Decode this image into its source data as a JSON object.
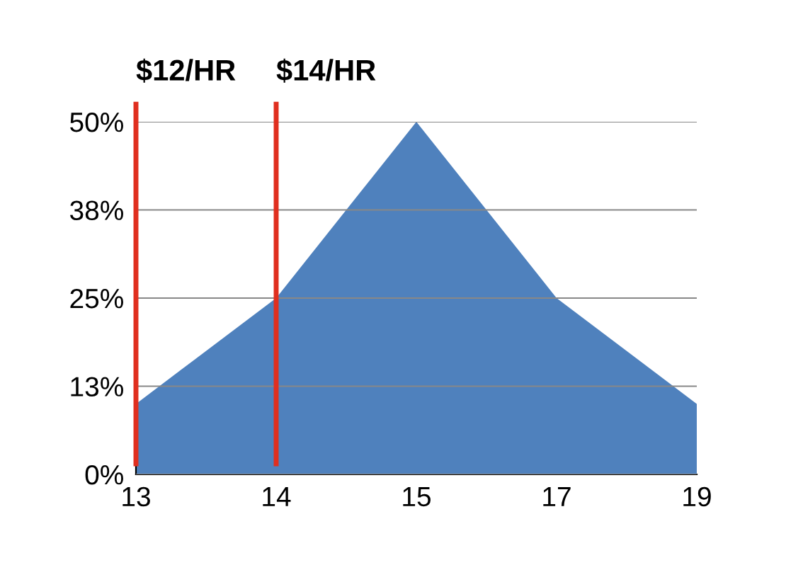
{
  "chart_data": {
    "type": "area",
    "categories": [
      "13",
      "14",
      "15",
      "17",
      "19"
    ],
    "values": [
      10,
      25,
      50,
      25,
      10
    ],
    "color": "#4f81bd",
    "ylim": [
      0,
      50
    ],
    "yticks": [
      {
        "value": 0,
        "label": "0%"
      },
      {
        "value": 12.5,
        "label": "13%"
      },
      {
        "value": 25,
        "label": "25%"
      },
      {
        "value": 37.5,
        "label": "38%"
      },
      {
        "value": 50,
        "label": "50%"
      }
    ],
    "grid": "y",
    "legend": false,
    "ref_lines": [
      {
        "axis": "x",
        "value": "13",
        "label": "$12/HR",
        "color": "#e02f1f"
      },
      {
        "axis": "x",
        "value": "14",
        "label": "$14/HR",
        "color": "#e02f1f"
      }
    ]
  }
}
